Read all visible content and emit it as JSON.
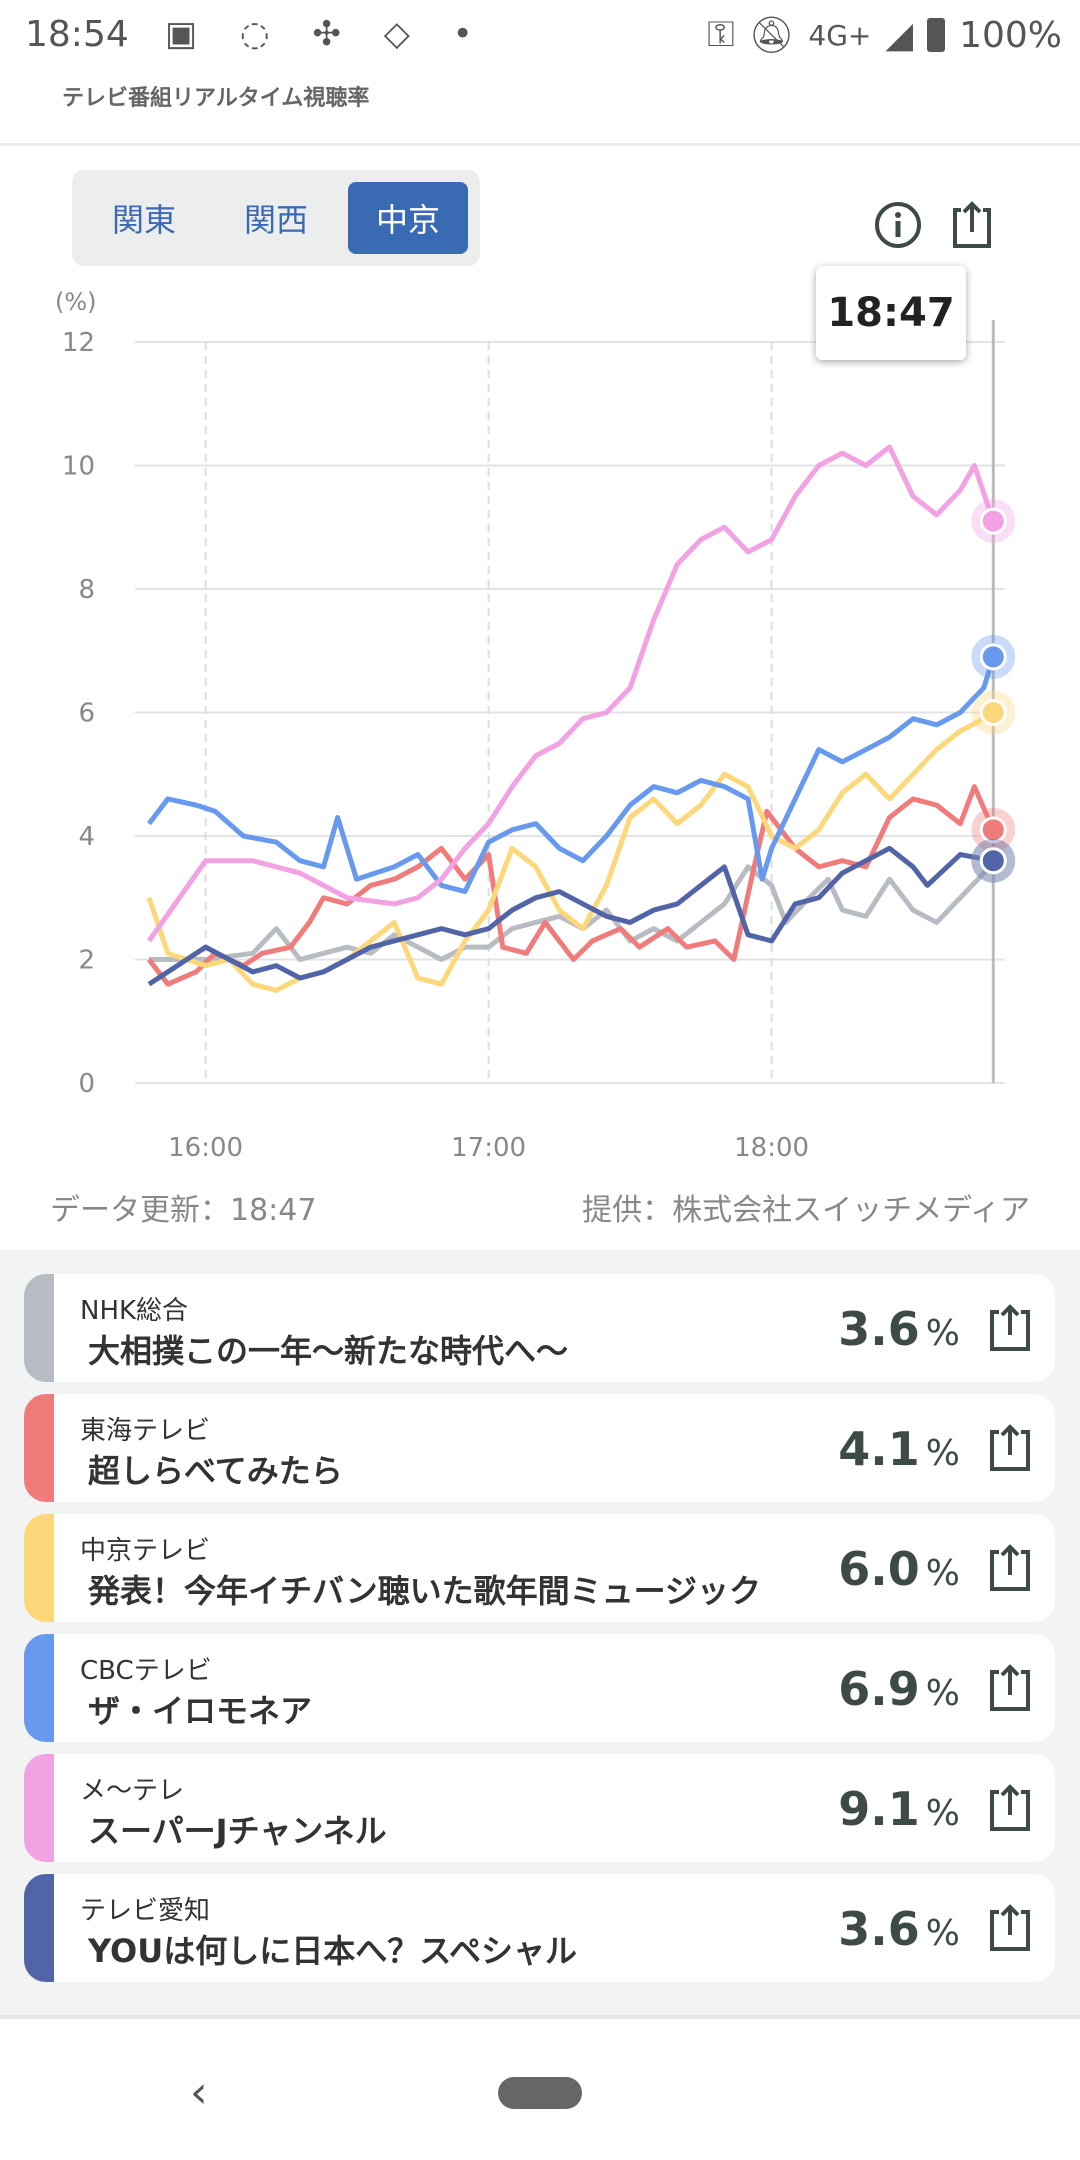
{
  "status_bar": {
    "time": "18:54",
    "network": "4G+",
    "battery": "100%"
  },
  "header": {
    "subtitle": "テレビ番組リアルタイム視聴率"
  },
  "regions": [
    {
      "label": "関東",
      "selected": false
    },
    {
      "label": "関西",
      "selected": false
    },
    {
      "label": "中京",
      "selected": true
    }
  ],
  "tooltip": {
    "time": "18:47"
  },
  "footer": {
    "updated": "データ更新：18:47",
    "provider": "提供：株式会社スイッチメディア"
  },
  "chart_data": {
    "type": "line",
    "ylabel": "(%)",
    "ylim": [
      0,
      12
    ],
    "yticks": [
      "0",
      "2",
      "4",
      "6",
      "8",
      "10",
      "12"
    ],
    "xlim": [
      "15:48",
      "18:47"
    ],
    "xticks": [
      "16:00",
      "17:00",
      "18:00"
    ],
    "cursor": "18:47",
    "series": [
      {
        "name": "NHK総合",
        "color": "#b7bcc3",
        "points": [
          [
            "15:48",
            2.0
          ],
          [
            "16:00",
            2.0
          ],
          [
            "16:10",
            2.1
          ],
          [
            "16:15",
            2.5
          ],
          [
            "16:20",
            2.0
          ],
          [
            "16:30",
            2.2
          ],
          [
            "16:35",
            2.1
          ],
          [
            "16:40",
            2.4
          ],
          [
            "16:45",
            2.2
          ],
          [
            "16:50",
            2.0
          ],
          [
            "16:55",
            2.2
          ],
          [
            "17:00",
            2.2
          ],
          [
            "17:05",
            2.5
          ],
          [
            "17:10",
            2.6
          ],
          [
            "17:15",
            2.7
          ],
          [
            "17:20",
            2.5
          ],
          [
            "17:25",
            2.8
          ],
          [
            "17:30",
            2.3
          ],
          [
            "17:35",
            2.5
          ],
          [
            "17:40",
            2.3
          ],
          [
            "17:45",
            2.6
          ],
          [
            "17:50",
            2.9
          ],
          [
            "17:55",
            3.5
          ],
          [
            "18:00",
            3.2
          ],
          [
            "18:03",
            2.6
          ],
          [
            "18:08",
            3.0
          ],
          [
            "18:12",
            3.3
          ],
          [
            "18:15",
            2.8
          ],
          [
            "18:20",
            2.7
          ],
          [
            "18:25",
            3.3
          ],
          [
            "18:30",
            2.8
          ],
          [
            "18:35",
            2.6
          ],
          [
            "18:40",
            3.0
          ],
          [
            "18:45",
            3.4
          ],
          [
            "18:47",
            3.6
          ]
        ]
      },
      {
        "name": "東海テレビ",
        "color": "#f07b7b",
        "points": [
          [
            "15:48",
            2.0
          ],
          [
            "15:52",
            1.6
          ],
          [
            "15:58",
            1.8
          ],
          [
            "16:02",
            2.1
          ],
          [
            "16:08",
            1.9
          ],
          [
            "16:12",
            2.1
          ],
          [
            "16:18",
            2.2
          ],
          [
            "16:22",
            2.6
          ],
          [
            "16:25",
            3.0
          ],
          [
            "16:30",
            2.9
          ],
          [
            "16:35",
            3.2
          ],
          [
            "16:40",
            3.3
          ],
          [
            "16:45",
            3.5
          ],
          [
            "16:50",
            3.8
          ],
          [
            "16:55",
            3.3
          ],
          [
            "17:00",
            3.7
          ],
          [
            "17:03",
            2.2
          ],
          [
            "17:08",
            2.1
          ],
          [
            "17:12",
            2.6
          ],
          [
            "17:18",
            2.0
          ],
          [
            "17:22",
            2.3
          ],
          [
            "17:28",
            2.5
          ],
          [
            "17:32",
            2.2
          ],
          [
            "17:38",
            2.5
          ],
          [
            "17:42",
            2.2
          ],
          [
            "17:48",
            2.3
          ],
          [
            "17:52",
            2.0
          ],
          [
            "17:56",
            3.4
          ],
          [
            "17:59",
            4.4
          ],
          [
            "18:05",
            3.8
          ],
          [
            "18:10",
            3.5
          ],
          [
            "18:15",
            3.6
          ],
          [
            "18:20",
            3.5
          ],
          [
            "18:25",
            4.3
          ],
          [
            "18:30",
            4.6
          ],
          [
            "18:35",
            4.5
          ],
          [
            "18:40",
            4.2
          ],
          [
            "18:43",
            4.8
          ],
          [
            "18:47",
            4.1
          ]
        ]
      },
      {
        "name": "中京テレビ",
        "color": "#fdd87a",
        "points": [
          [
            "15:48",
            3.0
          ],
          [
            "15:52",
            2.1
          ],
          [
            "16:00",
            1.9
          ],
          [
            "16:05",
            2.0
          ],
          [
            "16:10",
            1.6
          ],
          [
            "16:15",
            1.5
          ],
          [
            "16:20",
            1.7
          ],
          [
            "16:25",
            1.8
          ],
          [
            "16:30",
            2.0
          ],
          [
            "16:35",
            2.3
          ],
          [
            "16:40",
            2.6
          ],
          [
            "16:45",
            1.7
          ],
          [
            "16:50",
            1.6
          ],
          [
            "16:55",
            2.3
          ],
          [
            "17:00",
            2.8
          ],
          [
            "17:05",
            3.8
          ],
          [
            "17:10",
            3.5
          ],
          [
            "17:15",
            2.8
          ],
          [
            "17:20",
            2.5
          ],
          [
            "17:25",
            3.2
          ],
          [
            "17:30",
            4.3
          ],
          [
            "17:35",
            4.6
          ],
          [
            "17:40",
            4.2
          ],
          [
            "17:45",
            4.5
          ],
          [
            "17:50",
            5.0
          ],
          [
            "17:55",
            4.8
          ],
          [
            "18:00",
            4.0
          ],
          [
            "18:05",
            3.8
          ],
          [
            "18:10",
            4.1
          ],
          [
            "18:15",
            4.7
          ],
          [
            "18:20",
            5.0
          ],
          [
            "18:25",
            4.6
          ],
          [
            "18:30",
            5.0
          ],
          [
            "18:35",
            5.4
          ],
          [
            "18:40",
            5.7
          ],
          [
            "18:45",
            5.9
          ],
          [
            "18:47",
            6.0
          ]
        ]
      },
      {
        "name": "CBCテレビ",
        "color": "#6799ee",
        "points": [
          [
            "15:48",
            4.2
          ],
          [
            "15:52",
            4.6
          ],
          [
            "15:58",
            4.5
          ],
          [
            "16:02",
            4.4
          ],
          [
            "16:08",
            4.0
          ],
          [
            "16:15",
            3.9
          ],
          [
            "16:20",
            3.6
          ],
          [
            "16:25",
            3.5
          ],
          [
            "16:28",
            4.3
          ],
          [
            "16:32",
            3.3
          ],
          [
            "16:40",
            3.5
          ],
          [
            "16:45",
            3.7
          ],
          [
            "16:50",
            3.2
          ],
          [
            "16:55",
            3.1
          ],
          [
            "17:00",
            3.9
          ],
          [
            "17:05",
            4.1
          ],
          [
            "17:10",
            4.2
          ],
          [
            "17:15",
            3.8
          ],
          [
            "17:20",
            3.6
          ],
          [
            "17:25",
            4.0
          ],
          [
            "17:30",
            4.5
          ],
          [
            "17:35",
            4.8
          ],
          [
            "17:40",
            4.7
          ],
          [
            "17:45",
            4.9
          ],
          [
            "17:50",
            4.8
          ],
          [
            "17:55",
            4.6
          ],
          [
            "17:58",
            3.3
          ],
          [
            "18:00",
            3.8
          ],
          [
            "18:05",
            4.6
          ],
          [
            "18:10",
            5.4
          ],
          [
            "18:15",
            5.2
          ],
          [
            "18:20",
            5.4
          ],
          [
            "18:25",
            5.6
          ],
          [
            "18:30",
            5.9
          ],
          [
            "18:35",
            5.8
          ],
          [
            "18:40",
            6.0
          ],
          [
            "18:45",
            6.4
          ],
          [
            "18:47",
            6.9
          ]
        ]
      },
      {
        "name": "メ〜テレ",
        "color": "#f2a1e3",
        "points": [
          [
            "15:48",
            2.3
          ],
          [
            "16:00",
            3.6
          ],
          [
            "16:10",
            3.6
          ],
          [
            "16:20",
            3.4
          ],
          [
            "16:25",
            3.2
          ],
          [
            "16:30",
            3.0
          ],
          [
            "16:40",
            2.9
          ],
          [
            "16:45",
            3.0
          ],
          [
            "16:50",
            3.3
          ],
          [
            "16:55",
            3.8
          ],
          [
            "17:00",
            4.2
          ],
          [
            "17:05",
            4.8
          ],
          [
            "17:10",
            5.3
          ],
          [
            "17:15",
            5.5
          ],
          [
            "17:20",
            5.9
          ],
          [
            "17:25",
            6.0
          ],
          [
            "17:30",
            6.4
          ],
          [
            "17:35",
            7.5
          ],
          [
            "17:40",
            8.4
          ],
          [
            "17:45",
            8.8
          ],
          [
            "17:50",
            9.0
          ],
          [
            "17:55",
            8.6
          ],
          [
            "18:00",
            8.8
          ],
          [
            "18:05",
            9.5
          ],
          [
            "18:10",
            10.0
          ],
          [
            "18:15",
            10.2
          ],
          [
            "18:20",
            10.0
          ],
          [
            "18:25",
            10.3
          ],
          [
            "18:30",
            9.5
          ],
          [
            "18:35",
            9.2
          ],
          [
            "18:40",
            9.6
          ],
          [
            "18:43",
            10.0
          ],
          [
            "18:47",
            9.1
          ]
        ]
      },
      {
        "name": "テレビ愛知",
        "color": "#5264a8",
        "points": [
          [
            "15:48",
            1.6
          ],
          [
            "15:52",
            1.8
          ],
          [
            "16:00",
            2.2
          ],
          [
            "16:05",
            2.0
          ],
          [
            "16:10",
            1.8
          ],
          [
            "16:15",
            1.9
          ],
          [
            "16:20",
            1.7
          ],
          [
            "16:25",
            1.8
          ],
          [
            "16:30",
            2.0
          ],
          [
            "16:35",
            2.2
          ],
          [
            "16:40",
            2.3
          ],
          [
            "16:45",
            2.4
          ],
          [
            "16:50",
            2.5
          ],
          [
            "16:55",
            2.4
          ],
          [
            "17:00",
            2.5
          ],
          [
            "17:05",
            2.8
          ],
          [
            "17:10",
            3.0
          ],
          [
            "17:15",
            3.1
          ],
          [
            "17:20",
            2.9
          ],
          [
            "17:25",
            2.7
          ],
          [
            "17:30",
            2.6
          ],
          [
            "17:35",
            2.8
          ],
          [
            "17:40",
            2.9
          ],
          [
            "17:45",
            3.2
          ],
          [
            "17:50",
            3.5
          ],
          [
            "17:55",
            2.4
          ],
          [
            "18:00",
            2.3
          ],
          [
            "18:05",
            2.9
          ],
          [
            "18:10",
            3.0
          ],
          [
            "18:15",
            3.4
          ],
          [
            "18:20",
            3.6
          ],
          [
            "18:25",
            3.8
          ],
          [
            "18:30",
            3.5
          ],
          [
            "18:33",
            3.2
          ],
          [
            "18:40",
            3.7
          ],
          [
            "18:47",
            3.6
          ]
        ]
      }
    ]
  },
  "channels": [
    {
      "channel": "NHK総合",
      "program": "大相撲この一年〜新たな時代へ〜",
      "rating": "3.6",
      "unit": "%",
      "color": "#b7bcc3"
    },
    {
      "channel": "東海テレビ",
      "program": "超しらべてみたら",
      "rating": "4.1",
      "unit": "%",
      "color": "#f07b7b"
    },
    {
      "channel": "中京テレビ",
      "program": "発表！今年イチバン聴いた歌年間ミュージック",
      "rating": "6.0",
      "unit": "%",
      "color": "#fdd87a"
    },
    {
      "channel": "CBCテレビ",
      "program": "ザ・イロモネア",
      "rating": "6.9",
      "unit": "%",
      "color": "#6799ee"
    },
    {
      "channel": "メ〜テレ",
      "program": "スーパーJチャンネル",
      "rating": "9.1",
      "unit": "%",
      "color": "#f2a1e3"
    },
    {
      "channel": "テレビ愛知",
      "program": "YOUは何しに日本へ？スペシャル",
      "rating": "3.6",
      "unit": "%",
      "color": "#5264a8"
    }
  ]
}
